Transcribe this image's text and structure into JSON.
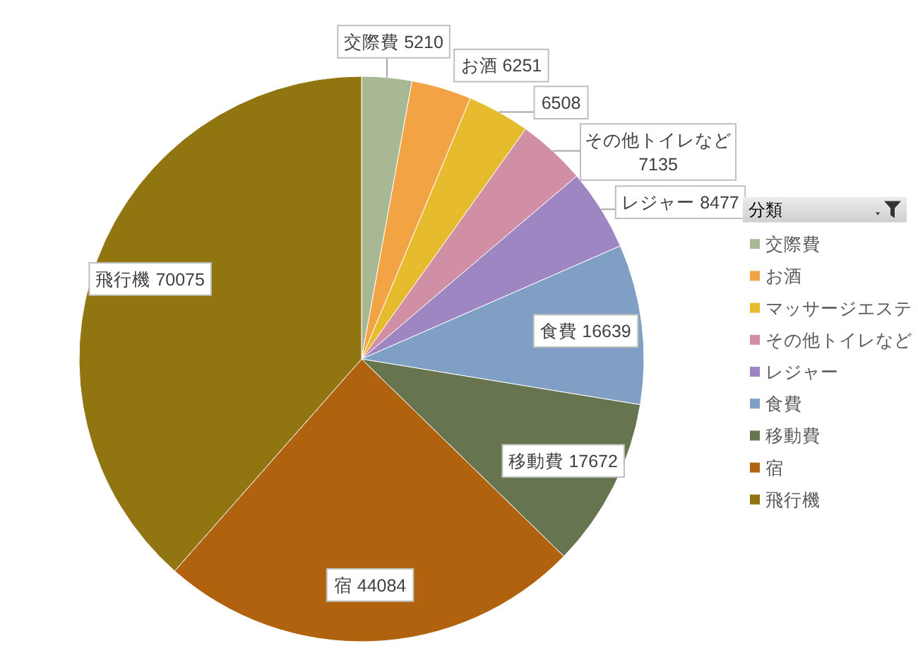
{
  "chart_data": {
    "type": "pie",
    "categories": [
      "交際費",
      "お酒",
      "マッサージエステ",
      "その他トイレなど",
      "レジャー",
      "食費",
      "移動費",
      "宿",
      "飛行機"
    ],
    "values": [
      5210,
      6251,
      6508,
      7135,
      8477,
      16639,
      17672,
      44084,
      70075
    ],
    "colors": [
      "#a9b894",
      "#f2a445",
      "#e6bc2e",
      "#d08fa5",
      "#9e86c2",
      "#7f9fc4",
      "#66754f",
      "#b0620e",
      "#917510"
    ],
    "value_labels": [
      "交際費 5210",
      "お酒 6251",
      "6508",
      "その他トイレなど 7135",
      "レジャー 8477",
      "食費 16639",
      "移動費 17672",
      "宿 44084",
      "飛行機 70075"
    ],
    "legend": "right",
    "legend_title": "分類"
  }
}
